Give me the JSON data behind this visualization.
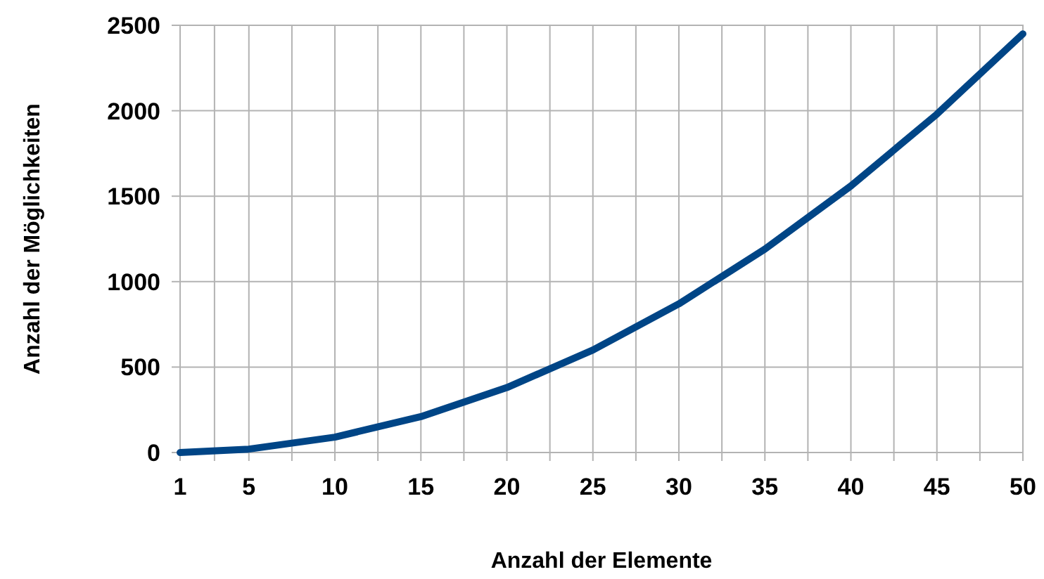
{
  "chart_data": {
    "type": "line",
    "xlabel": "Anzahl der Elemente",
    "ylabel": "Anzahl der Möglichkeiten",
    "x": [
      1,
      5,
      10,
      15,
      20,
      25,
      30,
      35,
      40,
      45,
      50
    ],
    "series": [
      {
        "color": "#004586",
        "values": [
          0,
          20,
          90,
          210,
          380,
          600,
          870,
          1190,
          1560,
          1980,
          2450
        ]
      }
    ],
    "xlim": [
      1,
      50
    ],
    "xticks": [
      1,
      {
        "value": 3,
        "label": null
      },
      5,
      {
        "value": 7.5,
        "label": null
      },
      10,
      {
        "value": 12.5,
        "label": null
      },
      15,
      {
        "value": 17.5,
        "label": null
      },
      20,
      {
        "value": 22.5,
        "label": null
      },
      25,
      {
        "value": 27.5,
        "label": null
      },
      30,
      {
        "value": 32.5,
        "label": null
      },
      35,
      {
        "value": 37.5,
        "label": null
      },
      40,
      {
        "value": 42.5,
        "label": null
      },
      45,
      {
        "value": 47.5,
        "label": null
      },
      50
    ],
    "ylim": [
      0,
      2500
    ],
    "yticks": [
      0,
      500,
      1000,
      1500,
      2000,
      2500
    ],
    "grid": true,
    "marker": "none",
    "line_style": "solid"
  }
}
